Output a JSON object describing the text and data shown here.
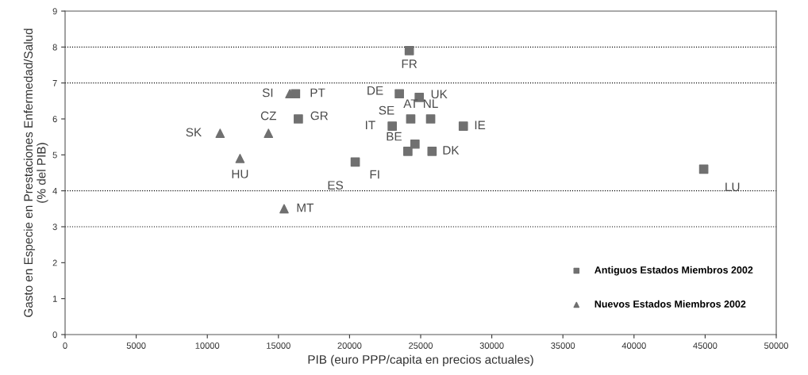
{
  "chart_data": {
    "type": "scatter",
    "xlabel": "PIB (euro PPP/capita en precios actuales)",
    "ylabel": "Gasto en Especie en Prestaciones Enfermedad/Salud\n(% del PIB)",
    "series": [
      {
        "name": "Antiguos Estados Miembros 2002",
        "color": "#707070",
        "marker": "square",
        "x": [
          24200,
          16200,
          16400,
          23500,
          24900,
          24300,
          25700,
          23000,
          24600,
          24100,
          25800,
          20400,
          28000,
          44900
        ],
        "values": [
          7.9,
          6.7,
          6.0,
          6.7,
          6.6,
          6.0,
          6.0,
          5.8,
          5.3,
          5.1,
          5.1,
          4.8,
          5.8,
          4.6
        ]
      },
      {
        "name": "Nuevos Estados Miembros 2002",
        "color": "#707070",
        "marker": "triangle",
        "x": [
          15800,
          14300,
          10900,
          12300,
          15400
        ],
        "values": [
          6.7,
          5.6,
          5.6,
          4.9,
          3.5
        ]
      }
    ],
    "annotations": [
      {
        "text": "FR",
        "x": 24200,
        "y": 7.9
      },
      {
        "text": "PT",
        "x": 16200,
        "y": 6.7
      },
      {
        "text": "SI",
        "x": 15800,
        "y": 6.7
      },
      {
        "text": "DE",
        "x": 23500,
        "y": 6.7
      },
      {
        "text": "UK",
        "x": 24900,
        "y": 6.6
      },
      {
        "text": "CZ",
        "x": 14300,
        "y": 5.6
      },
      "SE",
      {
        "text": "AT",
        "x": 24300,
        "y": 6.0
      },
      {
        "text": "NL",
        "x": 25700,
        "y": 6.0
      },
      {
        "text": "GR",
        "x": 16400,
        "y": 6.0
      },
      {
        "text": "IT",
        "x": 23000,
        "y": 5.8
      },
      {
        "text": "IE",
        "x": 28000,
        "y": 5.8
      },
      {
        "text": "SK",
        "x": 10900,
        "y": 5.6
      },
      {
        "text": "BE",
        "x": 24600,
        "y": 5.3
      },
      {
        "text": "DK",
        "x": 25800,
        "y": 5.1
      },
      {
        "text": "HU",
        "x": 12300,
        "y": 4.9
      },
      {
        "text": "FI",
        "x": 24100,
        "y": 5.1
      },
      {
        "text": "ES",
        "x": 20400,
        "y": 4.8
      },
      {
        "text": "LU",
        "x": 44900,
        "y": 4.6
      },
      {
        "text": "MT",
        "x": 15400,
        "y": 3.5
      }
    ],
    "xlim": [
      0,
      50000
    ],
    "xticks": [
      0,
      5000,
      10000,
      15000,
      20000,
      25000,
      30000,
      35000,
      40000,
      45000,
      50000
    ],
    "ylim": [
      0,
      9
    ],
    "yticks": [
      0,
      1,
      2,
      3,
      4,
      5,
      6,
      7,
      8,
      9
    ],
    "ref_lines": [
      {
        "axis": "y",
        "value": 3,
        "color": "#000000",
        "line_style": "dotted"
      },
      {
        "axis": "y",
        "value": 4,
        "color": "#000000",
        "line_style": "dotted"
      },
      {
        "axis": "y",
        "value": 7,
        "color": "#000000",
        "line_style": "dotted"
      },
      {
        "axis": "y",
        "value": 8,
        "color": "#000000",
        "line_style": "dotted"
      }
    ],
    "legend": "bottom right",
    "grid": false
  }
}
